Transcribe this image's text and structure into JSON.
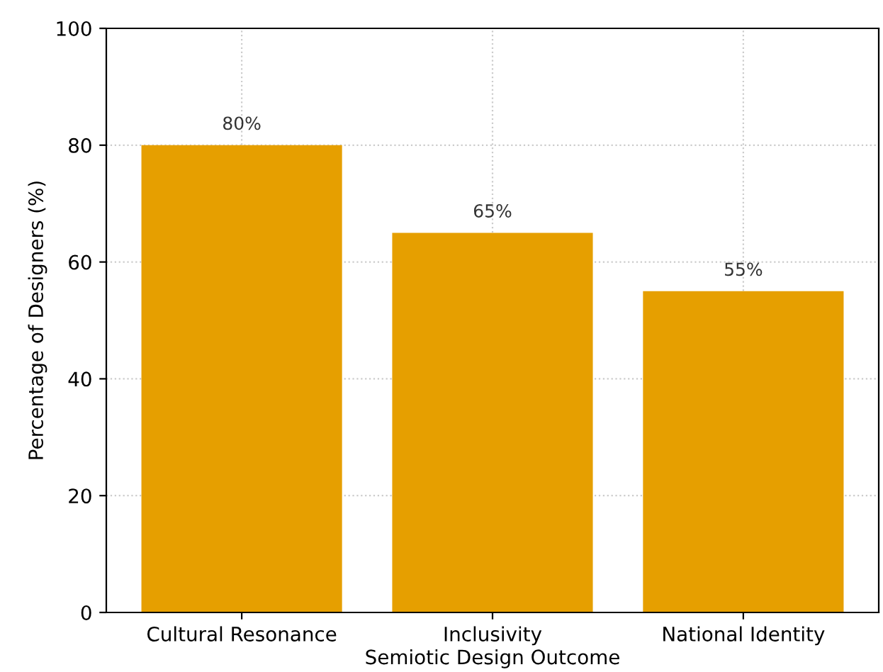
{
  "chart_data": {
    "type": "bar",
    "xlabel": "Semiotic Design Outcome",
    "ylabel": "Percentage of Designers (%)",
    "categories": [
      "Cultural Resonance",
      "Inclusivity",
      "National Identity"
    ],
    "values": [
      80,
      65,
      55
    ],
    "value_labels": [
      "80%",
      "65%",
      "55%"
    ],
    "color": "#e69f00",
    "ylim": [
      0,
      100
    ],
    "yticks": [
      0,
      20,
      40,
      60,
      80,
      100
    ],
    "grid": true
  }
}
